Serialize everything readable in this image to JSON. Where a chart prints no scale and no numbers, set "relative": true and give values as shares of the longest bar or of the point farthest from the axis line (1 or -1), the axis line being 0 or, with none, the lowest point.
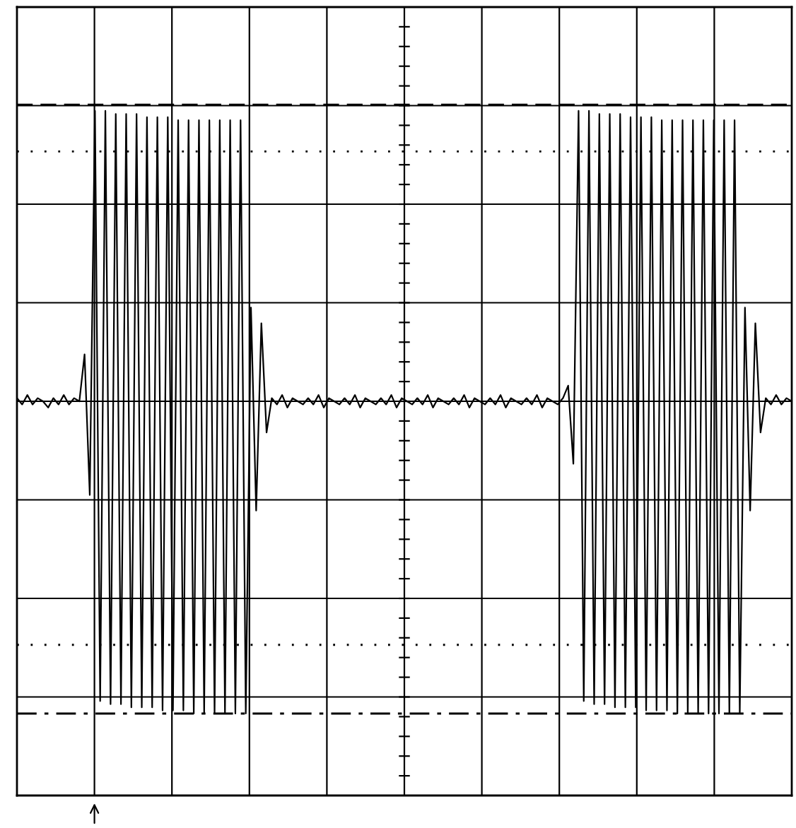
{
  "chart_data": {
    "type": "line",
    "relative": true,
    "grid": true,
    "tick_labels": false,
    "line_style": "solid",
    "marker": "none",
    "series": [
      {
        "color": "#000000",
        "values": [
          0.01,
          -0.01,
          0.02,
          -0.01,
          0.01,
          0,
          -0.02,
          0.01,
          -0.01,
          0.02,
          -0.01,
          0.01,
          0,
          0.15,
          -0.3,
          0.93,
          -0.96,
          0.93,
          -0.97,
          0.92,
          -0.97,
          0.92,
          -0.98,
          0.92,
          -0.98,
          0.91,
          -0.98,
          0.91,
          -0.99,
          0.91,
          -0.99,
          0.9,
          -0.99,
          0.9,
          -1,
          0.9,
          -1,
          0.9,
          -1,
          0.9,
          -1,
          0.9,
          -1,
          0.9,
          -1,
          0.3,
          -0.35,
          0.25,
          -0.1,
          0.01,
          -0.01,
          0.02,
          -0.02,
          0.01,
          0,
          -0.01,
          0.01,
          -0.01,
          0.02,
          -0.02,
          0.01,
          0,
          -0.01,
          0.01,
          -0.01,
          0.02,
          -0.02,
          0.01,
          0,
          -0.01,
          0.01,
          -0.01,
          0.02,
          -0.02,
          0.01,
          0,
          -0.01,
          0.01,
          -0.01,
          0.02,
          -0.02,
          0.01,
          0,
          -0.01,
          0.01,
          -0.01,
          0.02,
          -0.02,
          0.01,
          0,
          -0.01,
          0.01,
          -0.01,
          0.02,
          -0.02,
          0.01,
          0,
          -0.01,
          0.01,
          -0.01,
          0.02,
          -0.02,
          0.01,
          0,
          -0.01,
          0.01,
          0.05,
          -0.2,
          0.93,
          -0.96,
          0.93,
          -0.97,
          0.92,
          -0.97,
          0.92,
          -0.98,
          0.92,
          -0.98,
          0.91,
          -0.98,
          0.91,
          -0.99,
          0.91,
          -0.99,
          0.9,
          -0.99,
          0.9,
          -1,
          0.9,
          -1,
          0.9,
          -1,
          0.9,
          -1,
          0.9,
          -1,
          0.9,
          -1,
          0.9,
          -1,
          0.3,
          -0.35,
          0.25,
          -0.1,
          0.01,
          -0.01,
          0.02,
          -0.01,
          0.01,
          0
        ]
      }
    ],
    "categories": [
      null,
      null,
      null,
      null,
      null,
      null,
      null,
      null,
      null,
      null,
      null,
      null,
      null,
      null,
      null,
      null,
      null,
      null,
      null,
      null,
      null,
      null,
      null,
      null,
      null,
      null,
      null,
      null,
      null,
      null,
      null,
      null,
      null,
      null,
      null,
      null,
      null,
      null,
      null,
      null,
      null,
      null,
      null,
      null,
      null,
      null,
      null,
      null,
      null,
      null,
      null,
      null,
      null,
      null,
      null,
      null,
      null,
      null,
      null,
      null,
      null,
      null,
      null,
      null,
      null,
      null,
      null,
      null,
      null,
      null,
      null,
      null,
      null,
      null,
      null,
      null,
      null,
      null,
      null,
      null,
      null,
      null,
      null,
      null,
      null,
      null,
      null,
      null,
      null,
      null,
      null,
      null,
      null,
      null,
      null,
      null,
      null,
      null,
      null,
      null,
      null,
      null,
      null,
      null,
      null,
      null,
      null,
      null,
      null,
      null,
      null,
      null,
      null,
      null,
      null,
      null,
      null,
      null,
      null,
      null,
      null,
      null,
      null,
      null,
      null,
      null,
      null,
      null,
      null,
      null,
      null,
      null,
      null,
      null,
      null,
      null,
      null,
      null,
      null,
      null,
      null,
      null,
      null,
      null,
      null,
      null,
      null,
      null,
      null,
      null
    ],
    "ref_lines": [
      {
        "axis": "y",
        "value": 0.95,
        "color": "#000000",
        "line_style": "dashed"
      },
      {
        "axis": "y",
        "value": 0.8,
        "color": "#000000",
        "line_style": "dotted"
      },
      {
        "axis": "y",
        "value": -0.78,
        "color": "#000000",
        "line_style": "dotted"
      },
      {
        "axis": "y",
        "value": -1,
        "color": "#000000",
        "line_style": "dashdot"
      }
    ]
  }
}
